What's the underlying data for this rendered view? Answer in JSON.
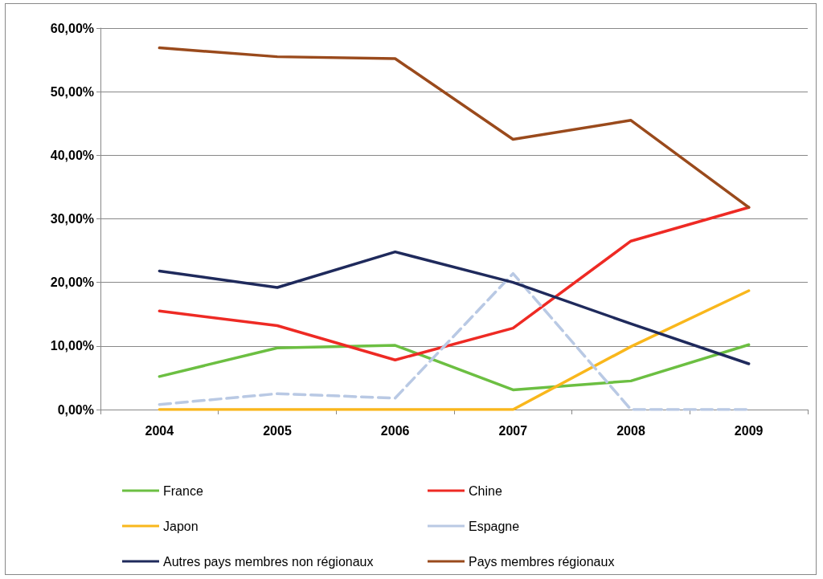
{
  "chart_data": {
    "type": "line",
    "categories": [
      "2004",
      "2005",
      "2006",
      "2007",
      "2008",
      "2009"
    ],
    "ylim": [
      0,
      60
    ],
    "yticks": [
      {
        "value": 0,
        "label": "0,00%"
      },
      {
        "value": 10,
        "label": "10,00%"
      },
      {
        "value": 20,
        "label": "20,00%"
      },
      {
        "value": 30,
        "label": "30,00%"
      },
      {
        "value": 40,
        "label": "40,00%"
      },
      {
        "value": 50,
        "label": "50,00%"
      },
      {
        "value": 60,
        "label": "60,00%"
      }
    ],
    "grid": "y",
    "legend": "bottom",
    "marker": "none",
    "series": [
      {
        "name": "France",
        "color": "#6cbf42",
        "values": [
          5.2,
          9.7,
          10.1,
          3.1,
          4.5,
          10.2
        ]
      },
      {
        "name": "Chine",
        "color": "#ee2a24",
        "values": [
          15.5,
          13.2,
          7.8,
          12.8,
          26.5,
          31.8
        ]
      },
      {
        "name": "Japon",
        "color": "#f9b71c",
        "values": [
          0,
          0,
          0,
          0,
          9.9,
          18.7
        ]
      },
      {
        "name": "Espagne",
        "color": "#b9c9e4",
        "line_style": "dashed",
        "values": [
          0.8,
          2.5,
          1.8,
          21.4,
          0,
          0
        ]
      },
      {
        "name": "Autres pays membres non régionaux",
        "color": "#1f2a5c",
        "values": [
          21.8,
          19.2,
          24.8,
          20.0,
          13.5,
          7.2
        ]
      },
      {
        "name": "Pays membres régionaux",
        "color": "#9a4a1c",
        "values": [
          56.9,
          55.5,
          55.2,
          42.5,
          45.5,
          31.8
        ]
      }
    ]
  }
}
